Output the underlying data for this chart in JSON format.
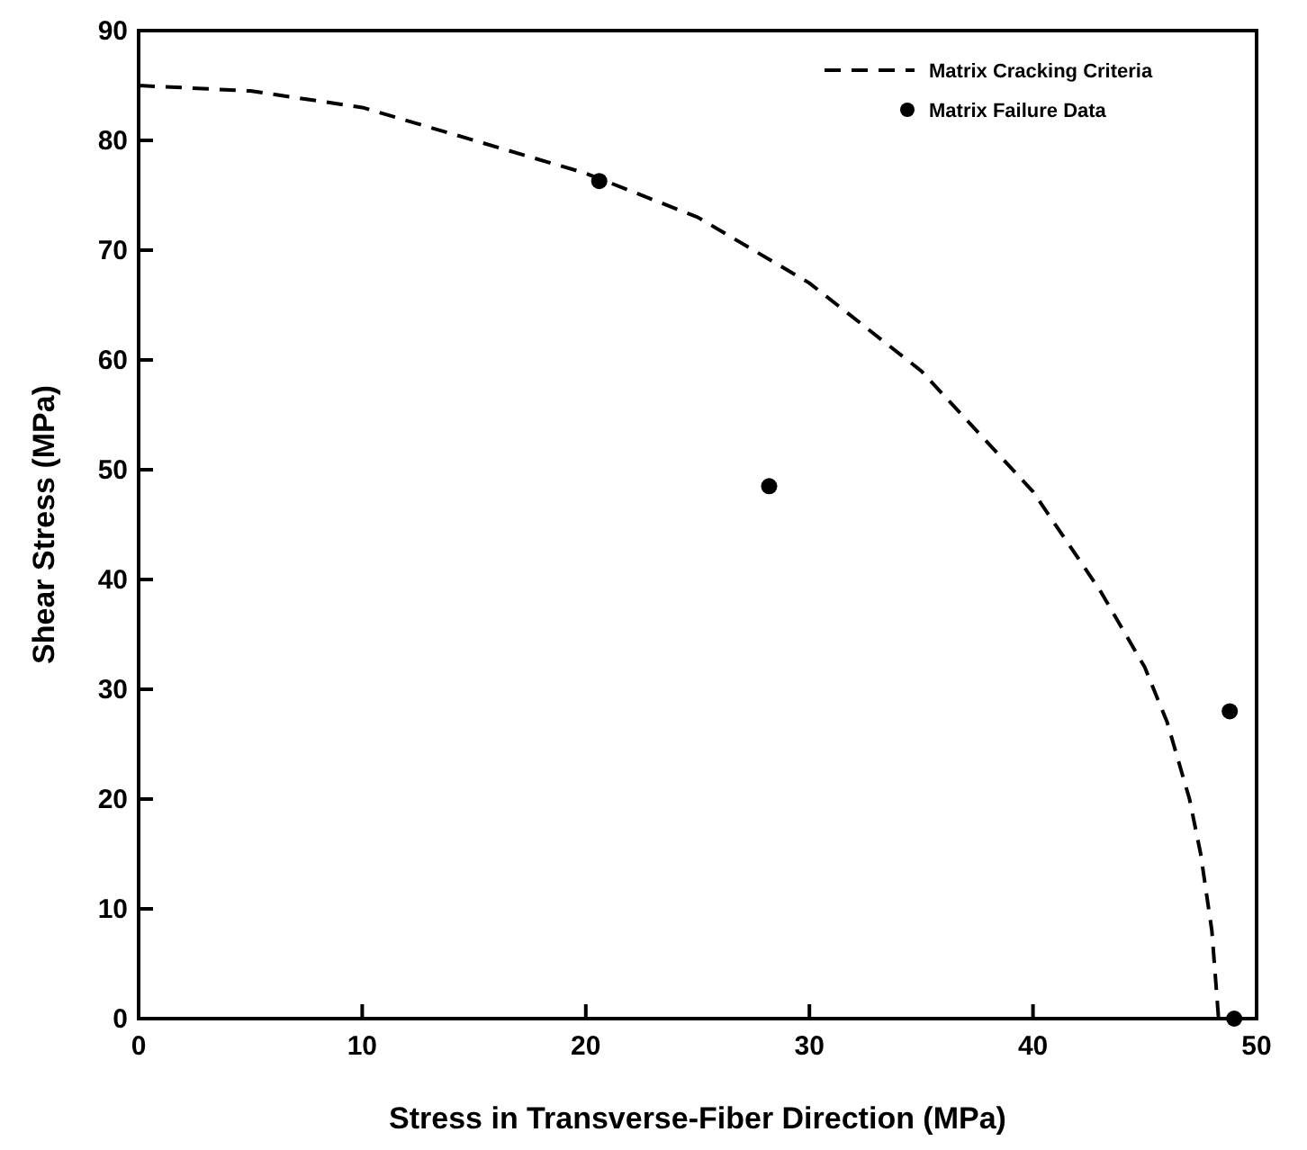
{
  "chart_data": {
    "type": "scatter",
    "xlabel": "Stress in Transverse-Fiber Direction (MPa)",
    "ylabel": "Shear Stress (MPa)",
    "xlim": [
      0,
      50
    ],
    "ylim": [
      0,
      90
    ],
    "xticks": [
      0,
      10,
      20,
      30,
      40,
      50
    ],
    "yticks": [
      0,
      10,
      20,
      30,
      40,
      50,
      60,
      70,
      80,
      90
    ],
    "grid": false,
    "legend": "top right",
    "series": [
      {
        "name": "Matrix Cracking Criteria",
        "type": "line",
        "line_style": "dashed",
        "marker": "none",
        "color": "#000000",
        "x": [
          0,
          5,
          10,
          15,
          20,
          25,
          30,
          35,
          40,
          43,
          45,
          46,
          47,
          47.5,
          48,
          48.3
        ],
        "values": [
          85,
          84.5,
          83,
          80,
          77,
          73,
          67,
          59,
          48,
          39,
          32,
          27,
          20,
          15,
          8,
          0
        ]
      },
      {
        "name": "Matrix Failure Data",
        "marker": "circle",
        "color": "#000000",
        "x": [
          20.6,
          28.2,
          48.8,
          49.0
        ],
        "values": [
          76.3,
          48.5,
          28,
          0
        ]
      }
    ]
  }
}
